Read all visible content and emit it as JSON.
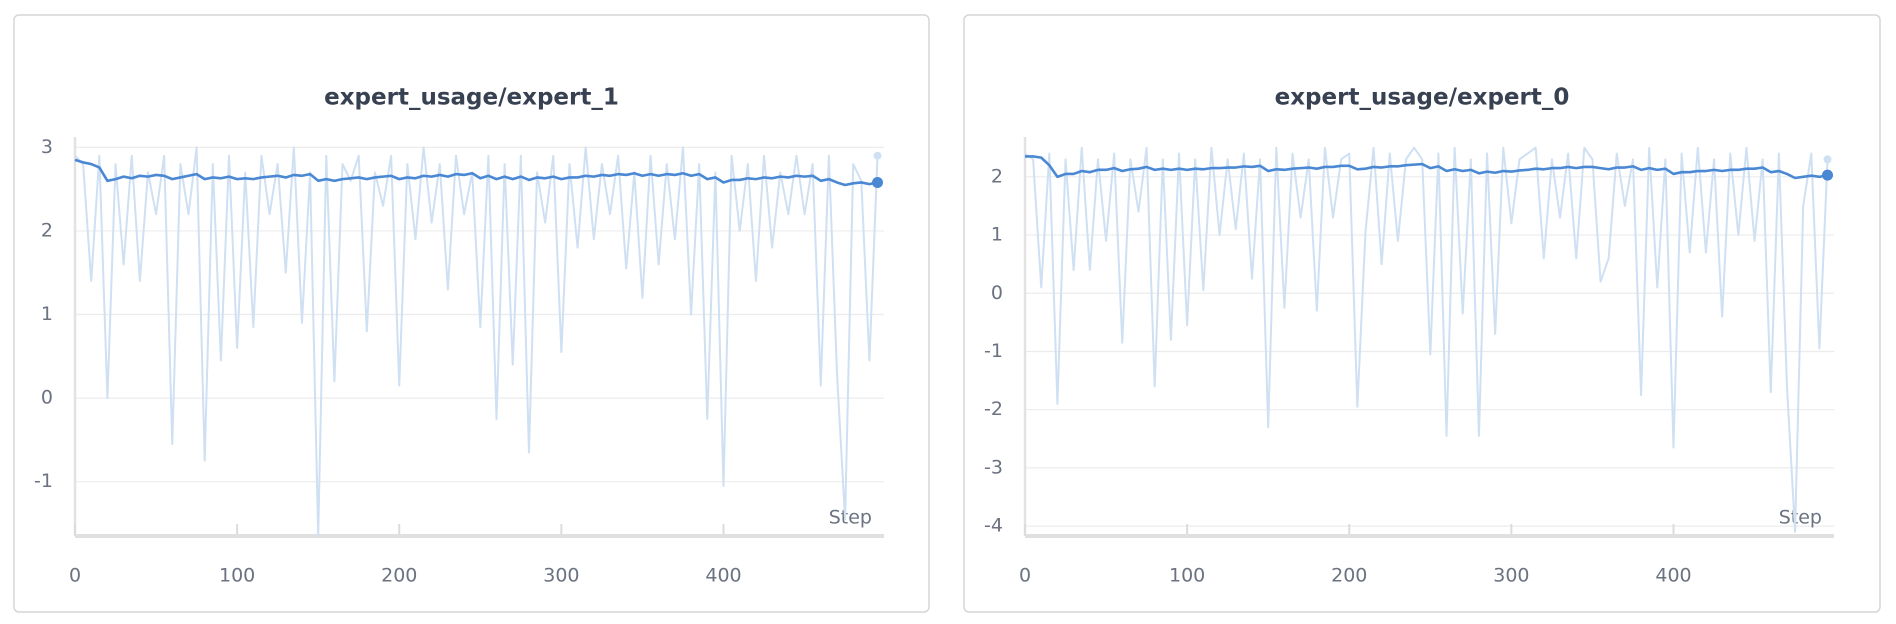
{
  "chart_data": [
    {
      "type": "line",
      "title": "expert_usage/expert_1",
      "x_label": "Step",
      "x": [
        0,
        5,
        10,
        15,
        20,
        25,
        30,
        35,
        40,
        45,
        50,
        55,
        60,
        65,
        70,
        75,
        80,
        85,
        90,
        95,
        100,
        105,
        110,
        115,
        120,
        125,
        130,
        135,
        140,
        145,
        150,
        155,
        160,
        165,
        170,
        175,
        180,
        185,
        190,
        195,
        200,
        205,
        210,
        215,
        220,
        225,
        230,
        235,
        240,
        245,
        250,
        255,
        260,
        265,
        270,
        275,
        280,
        285,
        290,
        295,
        300,
        305,
        310,
        315,
        320,
        325,
        330,
        335,
        340,
        345,
        350,
        355,
        360,
        365,
        370,
        375,
        380,
        385,
        390,
        395,
        400,
        405,
        410,
        415,
        420,
        425,
        430,
        435,
        440,
        445,
        450,
        455,
        460,
        465,
        470,
        475,
        480,
        485,
        490,
        495
      ],
      "series": [
        {
          "color": "#cfe0f3",
          "values": [
            2.9,
            2.8,
            1.4,
            2.9,
            0.0,
            2.8,
            1.6,
            2.9,
            1.4,
            2.7,
            2.2,
            2.9,
            -0.55,
            2.8,
            2.2,
            3.0,
            -0.75,
            2.8,
            0.45,
            2.9,
            0.6,
            2.7,
            0.85,
            2.9,
            2.2,
            2.8,
            1.5,
            3.0,
            0.9,
            2.7,
            -1.65,
            2.9,
            0.2,
            2.8,
            2.6,
            2.9,
            0.8,
            2.7,
            2.3,
            2.9,
            0.15,
            2.8,
            1.9,
            3.0,
            2.1,
            2.8,
            1.3,
            2.9,
            2.2,
            2.7,
            0.85,
            2.9,
            -0.25,
            2.8,
            0.4,
            2.9,
            -0.65,
            2.7,
            2.1,
            2.9,
            0.55,
            2.8,
            1.8,
            3.0,
            1.9,
            2.8,
            2.2,
            2.9,
            1.55,
            2.7,
            1.2,
            2.9,
            1.6,
            2.8,
            1.9,
            3.0,
            1.0,
            2.8,
            -0.25,
            2.7,
            -1.05,
            2.9,
            2.0,
            2.8,
            1.4,
            2.9,
            1.8,
            2.7,
            2.2,
            2.9,
            2.2,
            2.8,
            0.15,
            2.9,
            0.3,
            -1.45,
            2.8,
            2.6,
            0.45,
            2.9
          ]
        },
        {
          "color": "#4a88d3",
          "values": [
            2.85,
            2.82,
            2.8,
            2.76,
            2.6,
            2.62,
            2.65,
            2.63,
            2.66,
            2.65,
            2.67,
            2.66,
            2.62,
            2.64,
            2.66,
            2.68,
            2.62,
            2.64,
            2.63,
            2.65,
            2.62,
            2.63,
            2.62,
            2.64,
            2.65,
            2.66,
            2.64,
            2.67,
            2.66,
            2.68,
            2.6,
            2.62,
            2.6,
            2.62,
            2.63,
            2.64,
            2.62,
            2.64,
            2.65,
            2.66,
            2.62,
            2.64,
            2.63,
            2.66,
            2.65,
            2.67,
            2.65,
            2.68,
            2.67,
            2.69,
            2.63,
            2.66,
            2.62,
            2.65,
            2.62,
            2.65,
            2.61,
            2.64,
            2.63,
            2.65,
            2.62,
            2.64,
            2.64,
            2.66,
            2.65,
            2.67,
            2.66,
            2.68,
            2.67,
            2.69,
            2.66,
            2.68,
            2.66,
            2.68,
            2.67,
            2.69,
            2.66,
            2.68,
            2.62,
            2.64,
            2.58,
            2.61,
            2.61,
            2.63,
            2.62,
            2.64,
            2.63,
            2.65,
            2.64,
            2.66,
            2.65,
            2.66,
            2.6,
            2.62,
            2.58,
            2.55,
            2.57,
            2.58,
            2.56,
            2.58
          ]
        }
      ],
      "xlim": [
        0,
        499
      ],
      "ylim": [
        -1.65,
        3.1
      ],
      "xticks": [
        0,
        100,
        200,
        300,
        400
      ],
      "yticks": [
        -1,
        0,
        1,
        2,
        3
      ],
      "grid": true
    },
    {
      "type": "line",
      "title": "expert_usage/expert_0",
      "x_label": "Step",
      "x": [
        0,
        5,
        10,
        15,
        20,
        25,
        30,
        35,
        40,
        45,
        50,
        55,
        60,
        65,
        70,
        75,
        80,
        85,
        90,
        95,
        100,
        105,
        110,
        115,
        120,
        125,
        130,
        135,
        140,
        145,
        150,
        155,
        160,
        165,
        170,
        175,
        180,
        185,
        190,
        195,
        200,
        205,
        210,
        215,
        220,
        225,
        230,
        235,
        240,
        245,
        250,
        255,
        260,
        265,
        270,
        275,
        280,
        285,
        290,
        295,
        300,
        305,
        310,
        315,
        320,
        325,
        330,
        335,
        340,
        345,
        350,
        355,
        360,
        365,
        370,
        375,
        380,
        385,
        390,
        395,
        400,
        405,
        410,
        415,
        420,
        425,
        430,
        435,
        440,
        445,
        450,
        455,
        460,
        465,
        470,
        475,
        480,
        485,
        490,
        495
      ],
      "series": [
        {
          "color": "#cfe0f3",
          "values": [
            2.4,
            2.3,
            0.1,
            2.4,
            -1.9,
            2.3,
            0.4,
            2.5,
            0.4,
            2.3,
            0.9,
            2.4,
            -0.85,
            2.3,
            1.4,
            2.5,
            -1.6,
            2.3,
            -0.8,
            2.4,
            -0.55,
            2.3,
            0.05,
            2.5,
            1.0,
            2.3,
            1.1,
            2.4,
            0.25,
            2.3,
            -2.3,
            2.5,
            -0.25,
            2.4,
            1.3,
            2.3,
            -0.3,
            2.5,
            1.3,
            2.3,
            2.4,
            -1.95,
            1.05,
            2.5,
            0.5,
            2.4,
            0.9,
            2.3,
            2.5,
            2.3,
            -1.05,
            2.4,
            -2.45,
            2.5,
            -0.35,
            2.3,
            -2.45,
            2.4,
            -0.7,
            2.5,
            1.2,
            2.3,
            2.4,
            2.5,
            0.6,
            2.3,
            1.3,
            2.4,
            0.6,
            2.5,
            2.3,
            0.2,
            0.6,
            2.4,
            1.5,
            2.3,
            -1.75,
            2.5,
            0.1,
            2.3,
            -2.65,
            2.4,
            0.7,
            2.5,
            0.7,
            2.3,
            -0.4,
            2.4,
            1.0,
            2.5,
            0.9,
            2.3,
            -1.7,
            2.4,
            -1.6,
            -4.1,
            1.5,
            2.4,
            -0.95,
            2.3
          ]
        },
        {
          "color": "#4a88d3",
          "values": [
            2.35,
            2.35,
            2.33,
            2.2,
            2.0,
            2.05,
            2.05,
            2.1,
            2.08,
            2.12,
            2.12,
            2.15,
            2.1,
            2.13,
            2.14,
            2.17,
            2.12,
            2.14,
            2.12,
            2.14,
            2.12,
            2.14,
            2.13,
            2.15,
            2.15,
            2.16,
            2.16,
            2.18,
            2.17,
            2.19,
            2.1,
            2.13,
            2.12,
            2.14,
            2.15,
            2.16,
            2.14,
            2.17,
            2.17,
            2.19,
            2.19,
            2.13,
            2.14,
            2.17,
            2.16,
            2.18,
            2.18,
            2.2,
            2.21,
            2.22,
            2.15,
            2.18,
            2.1,
            2.13,
            2.1,
            2.12,
            2.06,
            2.09,
            2.07,
            2.1,
            2.09,
            2.11,
            2.12,
            2.14,
            2.13,
            2.15,
            2.15,
            2.17,
            2.15,
            2.17,
            2.17,
            2.15,
            2.13,
            2.16,
            2.16,
            2.18,
            2.12,
            2.15,
            2.12,
            2.14,
            2.05,
            2.08,
            2.08,
            2.1,
            2.1,
            2.12,
            2.1,
            2.12,
            2.12,
            2.14,
            2.14,
            2.16,
            2.08,
            2.1,
            2.05,
            1.98,
            2.0,
            2.02,
            2.0,
            2.03
          ]
        }
      ],
      "xlim": [
        0,
        499
      ],
      "ylim": [
        -4.17,
        2.65
      ],
      "xticks": [
        0,
        100,
        200,
        300,
        400
      ],
      "yticks": [
        -4,
        -3,
        -2,
        -1,
        0,
        1,
        2
      ],
      "grid": true
    }
  ]
}
